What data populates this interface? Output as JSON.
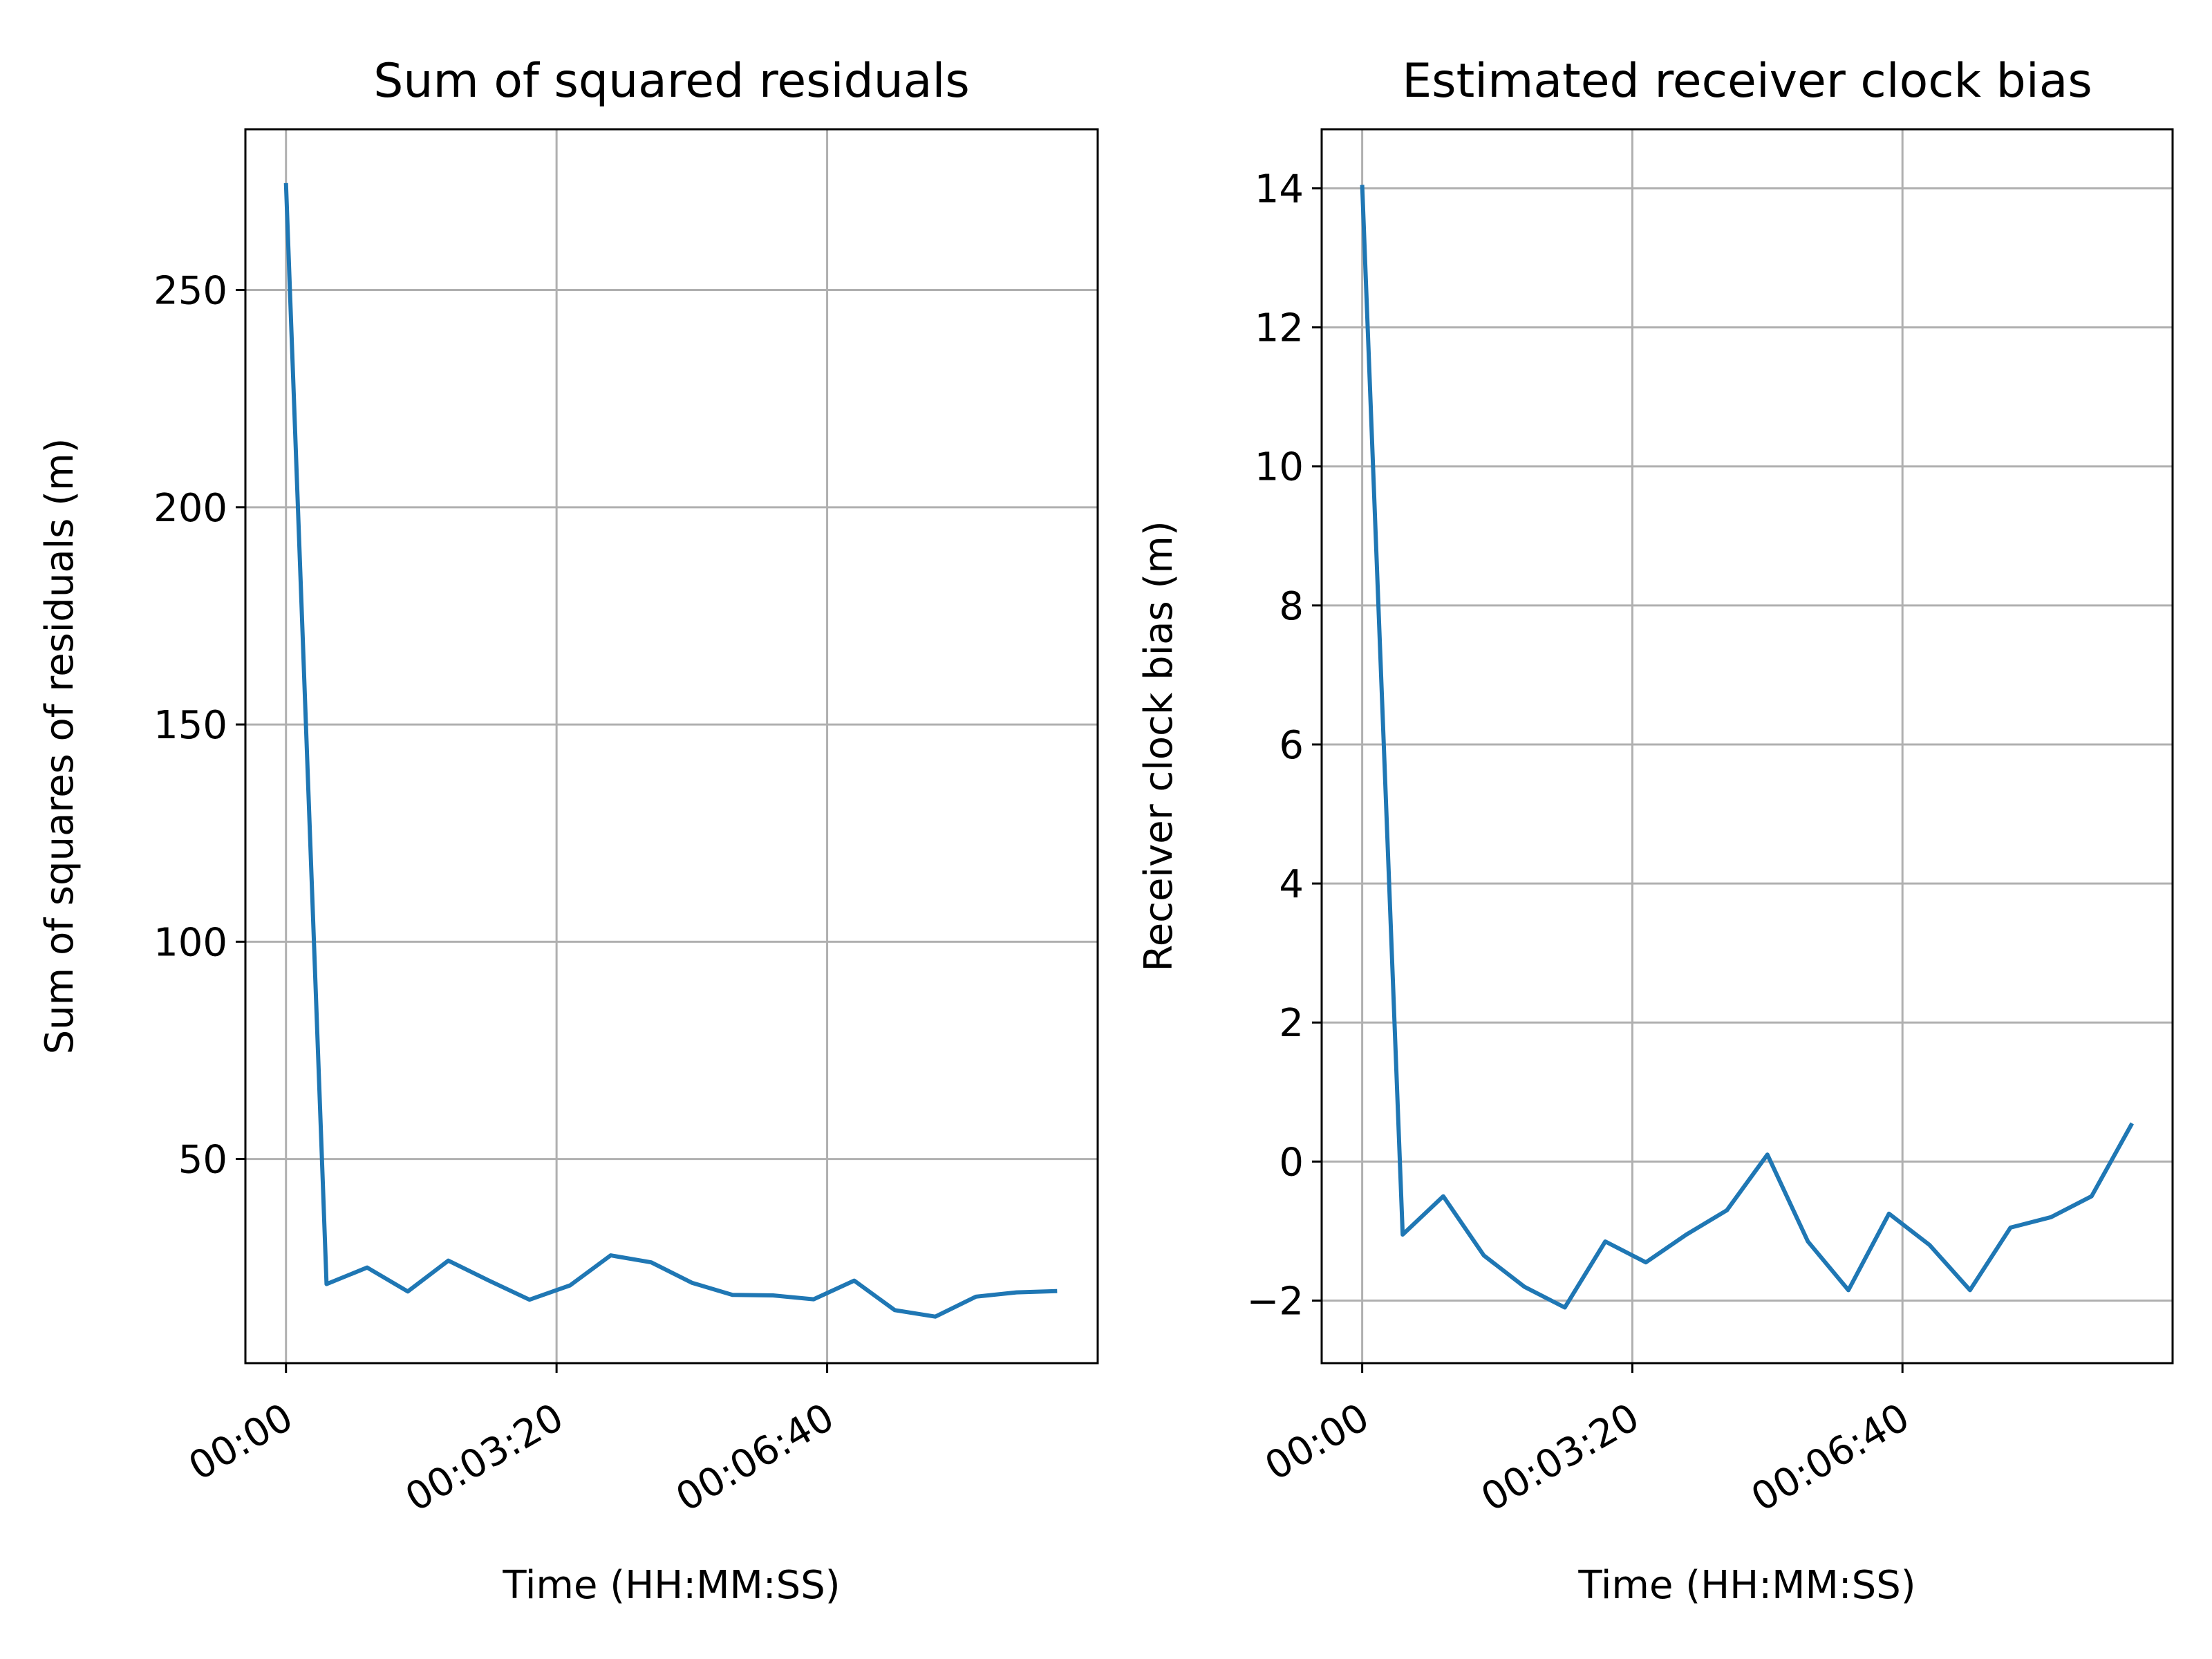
{
  "chart_data": [
    {
      "type": "line",
      "title": "Sum of squared residuals",
      "xlabel": "Time (HH:MM:SS)",
      "ylabel": "Sum of squares of residuals (m)",
      "x_ticks": [
        "00:00",
        "00:03:20",
        "00:06:40"
      ],
      "x_tick_seconds": [
        0,
        200,
        400
      ],
      "y_ticks": [
        50,
        100,
        150,
        200,
        250
      ],
      "xlim_seconds": [
        -30,
        600
      ],
      "ylim": [
        3,
        287
      ],
      "grid": true,
      "series_color": "#1f77b4",
      "x_seconds": [
        0,
        30,
        60,
        90,
        120,
        150,
        180,
        210,
        240,
        270,
        300,
        330,
        360,
        390,
        420,
        450,
        480,
        510,
        540,
        570
      ],
      "values": [
        274.6,
        21.2,
        25.0,
        19.5,
        26.6,
        22.0,
        17.6,
        20.9,
        27.8,
        26.2,
        21.5,
        18.7,
        18.6,
        17.7,
        22.0,
        15.2,
        13.7,
        18.3,
        19.3,
        19.6
      ]
    },
    {
      "type": "line",
      "title": "Estimated receiver clock bias",
      "xlabel": "Time (HH:MM:SS)",
      "ylabel": "Receiver clock bias (m)",
      "x_ticks": [
        "00:00",
        "00:03:20",
        "00:06:40"
      ],
      "x_tick_seconds": [
        0,
        200,
        400
      ],
      "y_ticks": [
        -2,
        0,
        2,
        4,
        6,
        8,
        10,
        12,
        14
      ],
      "y_tick_labels": [
        "−2",
        "0",
        "2",
        "4",
        "6",
        "8",
        "10",
        "12",
        "14"
      ],
      "xlim_seconds": [
        -30,
        600
      ],
      "ylim": [
        -2.9,
        14.85
      ],
      "grid": true,
      "series_color": "#1f77b4",
      "x_seconds": [
        0,
        30,
        60,
        90,
        120,
        150,
        180,
        210,
        240,
        270,
        300,
        330,
        360,
        390,
        420,
        450,
        480,
        510,
        540,
        570
      ],
      "values": [
        14.05,
        -1.05,
        -0.5,
        -1.35,
        -1.8,
        -2.1,
        -1.15,
        -1.45,
        -1.05,
        -0.7,
        0.1,
        -1.15,
        -1.85,
        -0.75,
        -1.2,
        -1.85,
        -0.95,
        -0.8,
        -0.5,
        0.55
      ]
    }
  ]
}
